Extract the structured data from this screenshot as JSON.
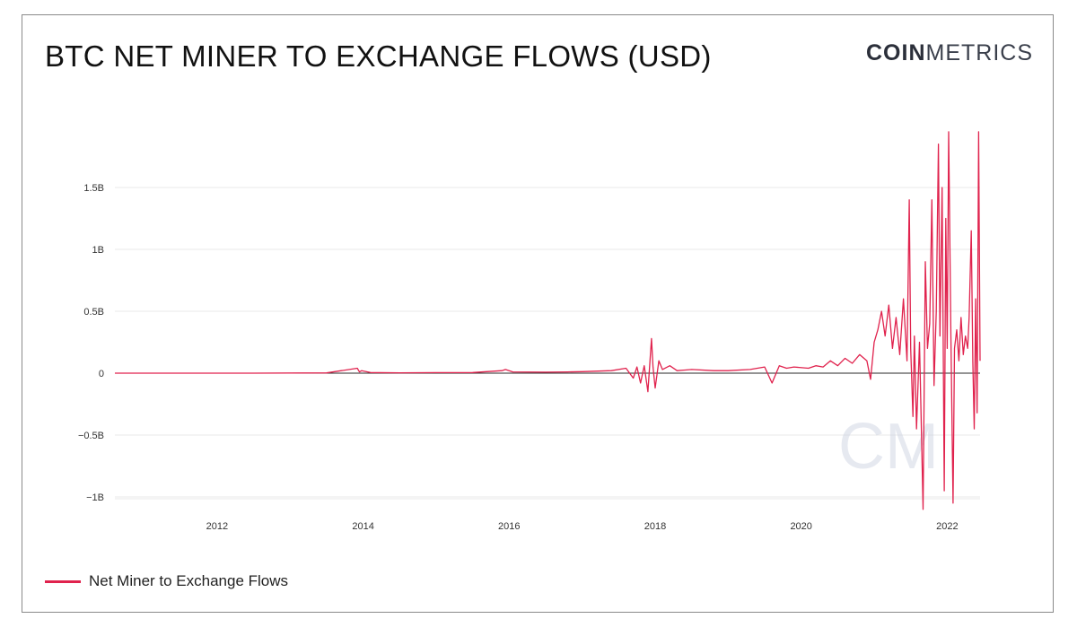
{
  "header": {
    "title": "BTC NET MINER TO EXCHANGE FLOWS (USD)",
    "brand_bold": "COIN",
    "brand_light": "METRICS",
    "watermark": "CM"
  },
  "legend": {
    "label": "Net Miner to Exchange Flows",
    "color": "#e0224d"
  },
  "chart_data": {
    "type": "line",
    "title": "BTC NET MINER TO EXCHANGE FLOWS (USD)",
    "xlabel": "",
    "ylabel": "",
    "x_ticks": [
      "2012",
      "2014",
      "2016",
      "2018",
      "2020",
      "2022"
    ],
    "y_ticks": [
      {
        "value": 1.5,
        "label": "1.5B"
      },
      {
        "value": 1,
        "label": "1B"
      },
      {
        "value": 0.5,
        "label": "0.5B"
      },
      {
        "value": 0,
        "label": "0"
      },
      {
        "value": -0.5,
        "label": "−0.5B"
      },
      {
        "value": -1,
        "label": "−1B"
      }
    ],
    "xlim": [
      2010.6,
      2022.45
    ],
    "ylim": [
      -1.1,
      1.95
    ],
    "grid": true,
    "legend_position": "bottom-left",
    "series": [
      {
        "name": "Net Miner to Exchange Flows",
        "color": "#e0224d",
        "unit": "B USD",
        "x": [
          2010.6,
          2011.5,
          2012.5,
          2013.5,
          2013.92,
          2013.95,
          2013.98,
          2014.1,
          2014.5,
          2015.0,
          2015.5,
          2015.9,
          2015.95,
          2016.05,
          2016.5,
          2016.8,
          2017.0,
          2017.4,
          2017.6,
          2017.7,
          2017.75,
          2017.8,
          2017.85,
          2017.9,
          2017.95,
          2017.97,
          2018.0,
          2018.05,
          2018.1,
          2018.2,
          2018.3,
          2018.5,
          2018.8,
          2019.0,
          2019.3,
          2019.5,
          2019.6,
          2019.7,
          2019.8,
          2019.9,
          2020.1,
          2020.2,
          2020.3,
          2020.4,
          2020.5,
          2020.6,
          2020.7,
          2020.8,
          2020.9,
          2020.95,
          2021.0,
          2021.05,
          2021.1,
          2021.15,
          2021.2,
          2021.25,
          2021.3,
          2021.35,
          2021.4,
          2021.45,
          2021.48,
          2021.5,
          2021.53,
          2021.55,
          2021.58,
          2021.62,
          2021.65,
          2021.67,
          2021.7,
          2021.73,
          2021.76,
          2021.79,
          2021.82,
          2021.85,
          2021.88,
          2021.9,
          2021.93,
          2021.96,
          2021.98,
          2022.0,
          2022.02,
          2022.05,
          2022.08,
          2022.1,
          2022.13,
          2022.16,
          2022.19,
          2022.22,
          2022.25,
          2022.28,
          2022.3,
          2022.33,
          2022.35,
          2022.37,
          2022.39,
          2022.41,
          2022.43,
          2022.45
        ],
        "y": [
          0.0,
          0.0,
          0.0,
          0.002,
          0.04,
          0.01,
          0.02,
          0.005,
          0.003,
          0.004,
          0.005,
          0.02,
          0.03,
          0.01,
          0.008,
          0.01,
          0.012,
          0.02,
          0.04,
          -0.04,
          0.05,
          -0.08,
          0.06,
          -0.15,
          0.28,
          0.05,
          -0.12,
          0.1,
          0.03,
          0.06,
          0.02,
          0.03,
          0.02,
          0.02,
          0.03,
          0.05,
          -0.08,
          0.06,
          0.04,
          0.05,
          0.04,
          0.06,
          0.05,
          0.1,
          0.06,
          0.12,
          0.08,
          0.15,
          0.1,
          -0.05,
          0.25,
          0.35,
          0.5,
          0.3,
          0.55,
          0.2,
          0.45,
          0.15,
          0.6,
          0.1,
          1.4,
          0.2,
          -0.35,
          0.3,
          -0.45,
          0.25,
          -0.55,
          -1.1,
          0.9,
          0.2,
          0.4,
          1.4,
          -0.1,
          0.5,
          1.85,
          0.3,
          1.5,
          -0.95,
          1.25,
          0.2,
          1.95,
          0.3,
          -1.05,
          0.2,
          0.35,
          0.1,
          0.45,
          0.15,
          0.3,
          0.2,
          0.45,
          1.15,
          0.1,
          -0.45,
          0.6,
          -0.32,
          1.95,
          0.1
        ]
      }
    ]
  }
}
